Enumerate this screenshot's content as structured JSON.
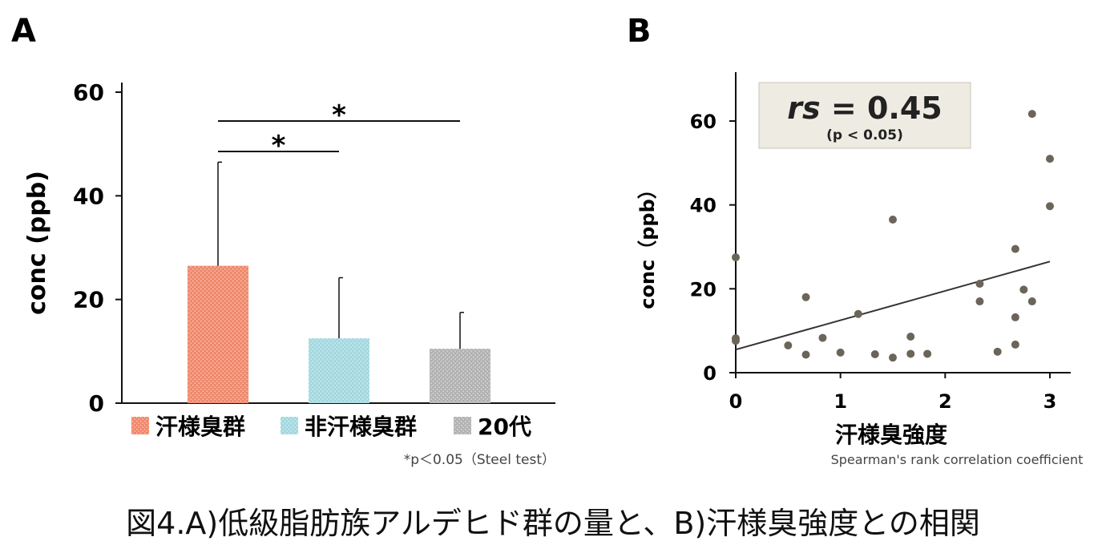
{
  "panel_labels": {
    "a": "A",
    "b": "B"
  },
  "caption": "図4.A)低級脂肪族アルデヒド群の量と、B)汗様臭強度との相関",
  "colors": {
    "bar1": "#f08a6e",
    "bar2": "#a6d8df",
    "bar3": "#b3b3b3",
    "point": "#6b6459",
    "trend": "#333333",
    "stats_box": "#eeebe2"
  },
  "chart_data": [
    {
      "type": "bar",
      "categories": [
        "汗様臭群",
        "非汗様臭群",
        "20代"
      ],
      "values": [
        26.5,
        12.5,
        10.5
      ],
      "error_upper": [
        46.5,
        24.2,
        17.5
      ],
      "ylabel": "conc (ppb)",
      "xlabel": "",
      "ylim": [
        0,
        60
      ],
      "yticks": [
        0,
        20,
        40,
        60
      ],
      "legend": [
        "汗様臭群",
        "非汗様臭群",
        "20代"
      ],
      "significance": [
        {
          "from": 0,
          "to": 1,
          "label": "*"
        },
        {
          "from": 0,
          "to": 2,
          "label": "*"
        }
      ],
      "note": "*p＜0.05（Steel test）"
    },
    {
      "type": "scatter",
      "xlabel": "汗様臭強度",
      "ylabel": "conc（ppb）",
      "xlim": [
        0,
        3.2
      ],
      "ylim": [
        0,
        72
      ],
      "xticks": [
        0,
        1,
        2,
        3
      ],
      "yticks": [
        0,
        20,
        40,
        60
      ],
      "points": [
        [
          0,
          27.5
        ],
        [
          0,
          8.2
        ],
        [
          0,
          7.6
        ],
        [
          0.5,
          6.5
        ],
        [
          0.67,
          18
        ],
        [
          0.67,
          4.3
        ],
        [
          0.83,
          8.3
        ],
        [
          1.0,
          4.8
        ],
        [
          1.17,
          14
        ],
        [
          1.33,
          4.4
        ],
        [
          1.5,
          36.5
        ],
        [
          1.5,
          3.6
        ],
        [
          1.67,
          8.6
        ],
        [
          1.67,
          4.5
        ],
        [
          1.83,
          4.5
        ],
        [
          2.33,
          21.2
        ],
        [
          2.33,
          17
        ],
        [
          2.5,
          5
        ],
        [
          2.67,
          29.5
        ],
        [
          2.67,
          13.2
        ],
        [
          2.67,
          6.7
        ],
        [
          2.75,
          19.8
        ],
        [
          2.83,
          17
        ],
        [
          2.83,
          61.7
        ],
        [
          3.0,
          51
        ],
        [
          3.0,
          39.7
        ]
      ],
      "trendline": {
        "x0": 0,
        "y0": 5.5,
        "x1": 3,
        "y1": 26.5
      },
      "stat_value_prefix": "rs",
      "stat_value": " = 0.45",
      "stat_p": "(p < 0.05)",
      "note": "Spearman's rank correlation coefficient"
    }
  ]
}
